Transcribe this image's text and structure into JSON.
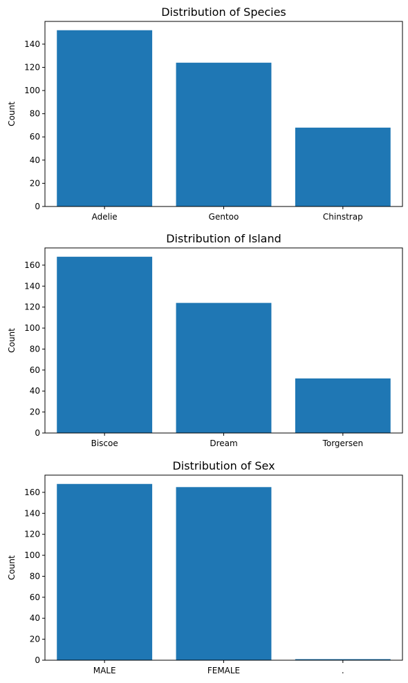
{
  "chart_data": [
    {
      "type": "bar",
      "title": "Distribution of Species",
      "xlabel": "",
      "ylabel": "Count",
      "categories": [
        "Adelie",
        "Gentoo",
        "Chinstrap"
      ],
      "values": [
        152,
        124,
        68
      ],
      "yticks": [
        0,
        20,
        40,
        60,
        80,
        100,
        120,
        140
      ],
      "ylim": [
        0,
        159.6
      ],
      "color": "#1f77b4",
      "grid": false
    },
    {
      "type": "bar",
      "title": "Distribution of Island",
      "xlabel": "",
      "ylabel": "Count",
      "categories": [
        "Biscoe",
        "Dream",
        "Torgersen"
      ],
      "values": [
        168,
        124,
        52
      ],
      "yticks": [
        0,
        20,
        40,
        60,
        80,
        100,
        120,
        140,
        160
      ],
      "ylim": [
        0,
        176.4
      ],
      "color": "#1f77b4",
      "grid": false
    },
    {
      "type": "bar",
      "title": "Distribution of Sex",
      "xlabel": "",
      "ylabel": "Count",
      "categories": [
        "MALE",
        "FEMALE",
        "."
      ],
      "values": [
        168,
        165,
        1
      ],
      "yticks": [
        0,
        20,
        40,
        60,
        80,
        100,
        120,
        140,
        160
      ],
      "ylim": [
        0,
        176.4
      ],
      "color": "#1f77b4",
      "grid": false
    }
  ]
}
